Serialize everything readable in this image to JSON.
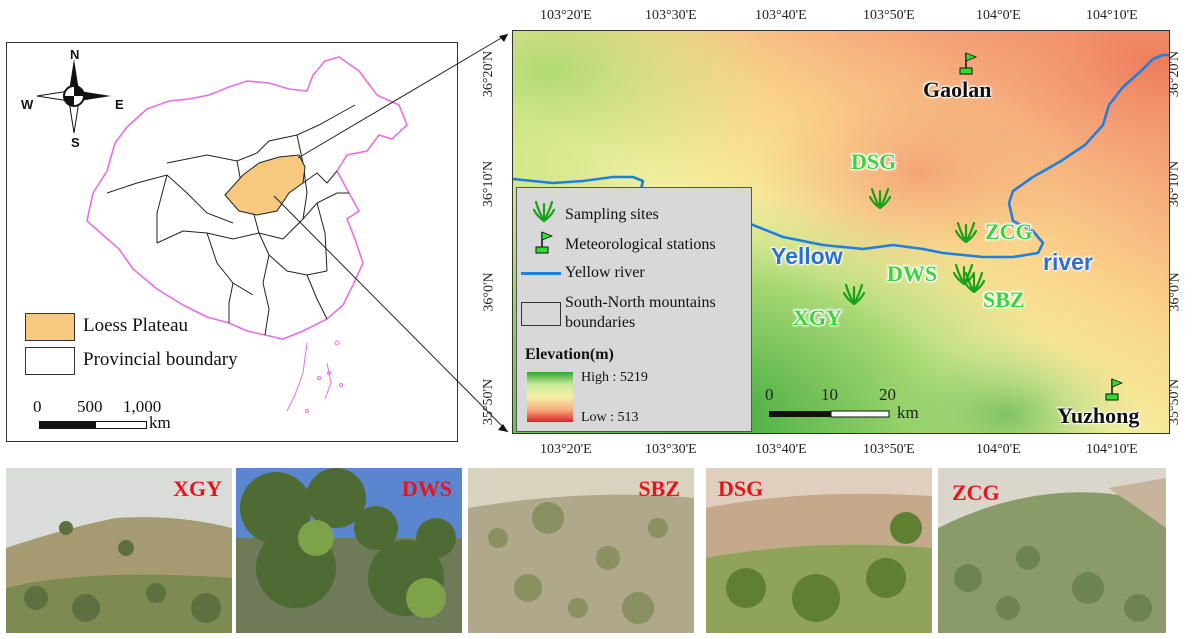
{
  "china_map": {
    "compass": {
      "n": "N",
      "s": "S",
      "e": "E",
      "w": "W"
    },
    "legend": {
      "loess": {
        "label": "Loess Plateau",
        "color": "#f7c97f"
      },
      "province": {
        "label": "Provincial boundary"
      }
    },
    "scale": {
      "ticks": [
        "0",
        "500",
        "1,000"
      ],
      "unit": "km"
    },
    "boundary_color": "#e86ee8"
  },
  "study_map": {
    "lon_ticks": [
      "103°20'E",
      "103°30'E",
      "103°40'E",
      "103°50'E",
      "104°0'E",
      "104°10'E"
    ],
    "lat_ticks": [
      "36°20'N",
      "36°10'N",
      "36°0'N",
      "35°50'N"
    ],
    "sites": [
      "DSG",
      "ZCG",
      "DWS",
      "SBZ",
      "XGY"
    ],
    "stations": [
      "Gaolan",
      "Yuzhong"
    ],
    "river_labels": [
      "Yellow",
      "river"
    ],
    "scale": {
      "ticks": [
        "0",
        "10",
        "20"
      ],
      "unit": "km"
    },
    "legend": {
      "sampling": "Sampling sites",
      "met": "Meteorological stations",
      "river": "Yellow river",
      "mountains_line1": "South-North mountains",
      "mountains_line2": "boundaries",
      "elevation_title": "Elevation(m)",
      "high": "High : 5219",
      "low": "Low : 513"
    },
    "colors": {
      "river": "#1f7fe0",
      "site": "#3bd43b",
      "high": "#2fa52f",
      "low": "#e0202a"
    }
  },
  "photos": [
    "XGY",
    "DWS",
    "SBZ",
    "DSG",
    "ZCG"
  ]
}
